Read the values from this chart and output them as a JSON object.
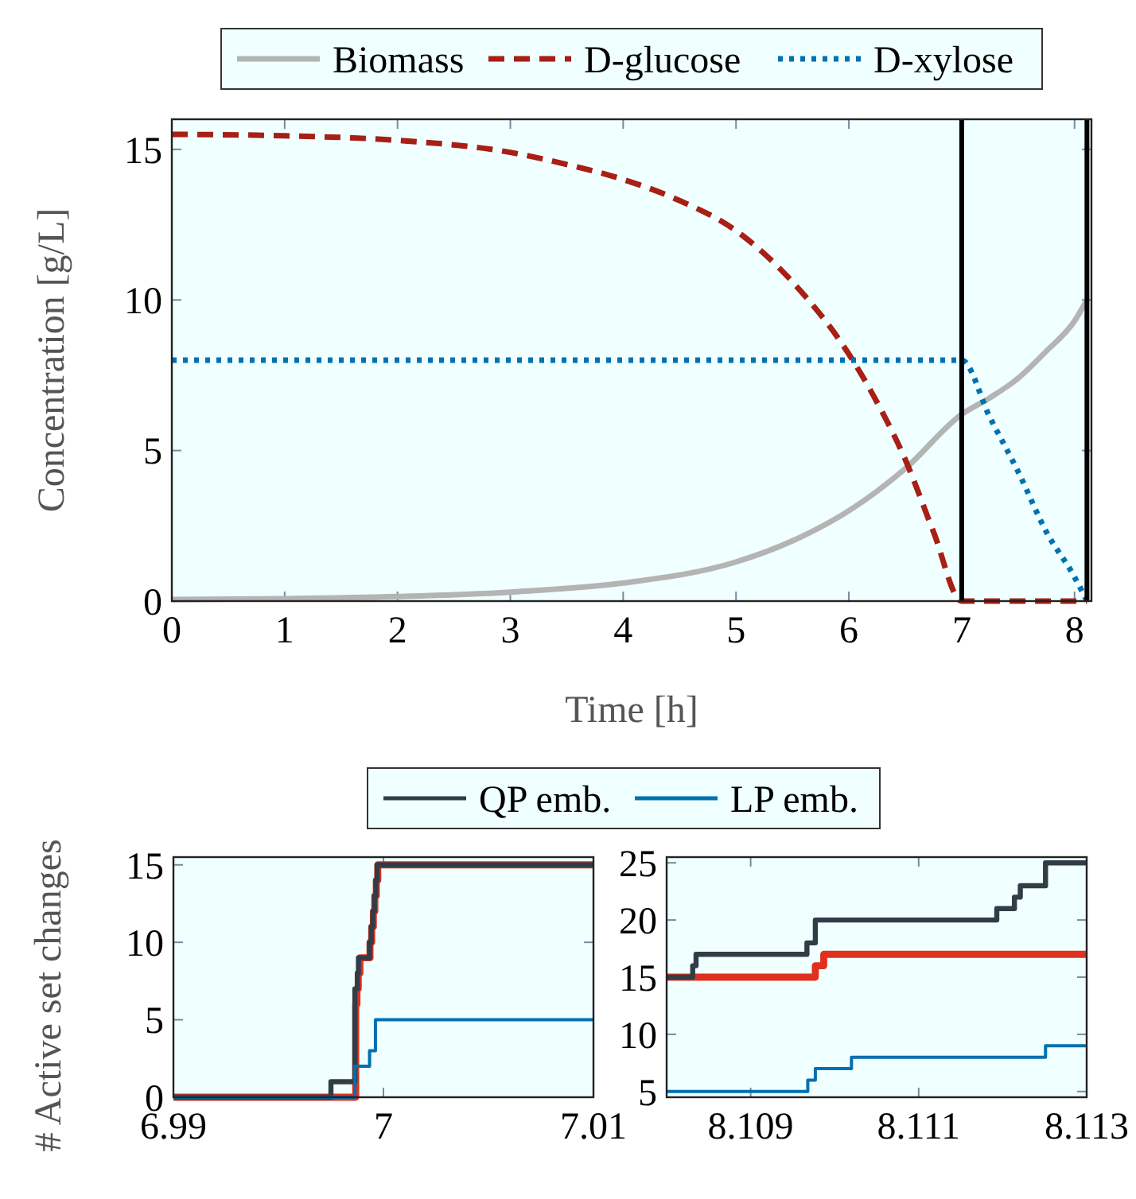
{
  "chart_data": [
    {
      "type": "line",
      "xlabel": "Time [h]",
      "ylabel": "Concentration [g/L]",
      "xlim": [
        0,
        8.15
      ],
      "ylim": [
        0,
        16
      ],
      "xticks": [
        0,
        1,
        2,
        3,
        4,
        5,
        6,
        7,
        8
      ],
      "yticks": [
        0,
        5,
        10,
        15
      ],
      "legend": "top",
      "grid": false,
      "ref_lines": [
        {
          "axis": "x",
          "value": 7,
          "color": "#000000"
        },
        {
          "axis": "x",
          "value": 8.11,
          "color": "#000000"
        }
      ],
      "series": [
        {
          "name": "Biomass",
          "color": "#b4b4b4",
          "line_style": "solid",
          "x": [
            0,
            1,
            2,
            3,
            4,
            5,
            5.5,
            6,
            6.5,
            7,
            7.25,
            7.5,
            7.75,
            8,
            8.11
          ],
          "values": [
            0.05,
            0.08,
            0.15,
            0.3,
            0.6,
            1.3,
            2,
            3,
            4.4,
            6.2,
            6.75,
            7.4,
            8.3,
            9.3,
            10
          ]
        },
        {
          "name": "D-glucose",
          "color": "#a81f15",
          "line_style": "dashed",
          "x": [
            0,
            1,
            2,
            3,
            3.5,
            4,
            4.5,
            5,
            5.5,
            6,
            6.25,
            6.5,
            6.75,
            7,
            7.5,
            8.11
          ],
          "values": [
            15.5,
            15.45,
            15.3,
            14.9,
            14.5,
            14,
            13.3,
            12.3,
            10.6,
            8.2,
            6.6,
            4.7,
            2.3,
            0,
            0,
            0
          ]
        },
        {
          "name": "D-xylose",
          "color": "#0072b2",
          "line_style": "dotted",
          "x": [
            0,
            3,
            6,
            7,
            7.25,
            7.5,
            7.75,
            8,
            8.11
          ],
          "values": [
            8,
            8,
            8,
            8,
            6.1,
            4.3,
            2.3,
            0.8,
            0
          ]
        }
      ]
    },
    {
      "type": "step",
      "ylabel": "# Active set changes",
      "xlim": [
        6.99,
        7.01
      ],
      "ylim": [
        0,
        15.5
      ],
      "xticks": [
        6.99,
        7,
        7.01
      ],
      "yticks": [
        0,
        5,
        10,
        15
      ],
      "legend": "top",
      "grid": false,
      "series": [
        {
          "color": "#e0301e",
          "x": [
            6.99,
            6.99868,
            6.99874,
            6.9988,
            6.99888,
            6.99936,
            6.99944,
            6.99952,
            6.99959,
            6.99966,
            6.99973,
            7.01
          ],
          "values": [
            0,
            6,
            7,
            8,
            9,
            10,
            11,
            12,
            13,
            14,
            15,
            15
          ]
        },
        {
          "name": "QP emb.",
          "color": "#323c46",
          "x": [
            6.99,
            6.9975,
            6.99864,
            6.99876,
            6.99881,
            6.99934,
            6.99942,
            6.9995,
            6.99957,
            6.99964,
            6.9997,
            7.01
          ],
          "values": [
            0,
            1,
            7,
            8,
            9,
            10,
            11,
            12,
            13,
            14,
            15,
            15
          ]
        },
        {
          "name": "LP emb.",
          "color": "#0070b0",
          "x": [
            6.99,
            6.99864,
            6.99934,
            6.99962,
            7.01
          ],
          "values": [
            0,
            2,
            3,
            5,
            5
          ]
        }
      ]
    },
    {
      "type": "step",
      "xlim": [
        8.108,
        8.113
      ],
      "ylim": [
        4.5,
        25.5
      ],
      "xticks": [
        8.109,
        8.111,
        8.113
      ],
      "yticks": [
        5,
        10,
        15,
        20,
        25
      ],
      "grid": false,
      "series": [
        {
          "color": "#e0301e",
          "x": [
            8.108,
            8.10977,
            8.10987,
            8.113
          ],
          "values": [
            15,
            16,
            17,
            17
          ]
        },
        {
          "color": "#323c46",
          "x": [
            8.108,
            8.10831,
            8.10835,
            8.10967,
            8.10977,
            8.11193,
            8.11214,
            8.11221,
            8.11251,
            8.113
          ],
          "values": [
            15,
            16,
            17,
            18,
            20,
            21,
            22,
            23,
            25,
            25
          ]
        },
        {
          "color": "#0070b0",
          "x": [
            8.108,
            8.10968,
            8.10977,
            8.1102,
            8.11251,
            8.113
          ],
          "values": [
            5,
            6,
            7,
            8,
            9,
            9
          ]
        }
      ]
    }
  ]
}
